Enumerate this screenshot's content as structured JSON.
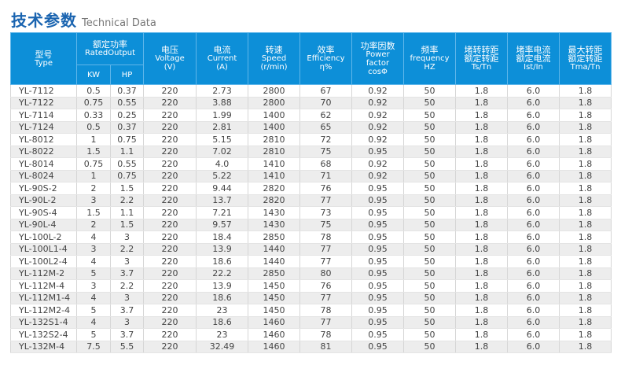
{
  "title": {
    "zh": "技术参数",
    "en": "Technical Data"
  },
  "header": {
    "type": {
      "zh": "型号",
      "en": "Type"
    },
    "rated": {
      "zh": "额定功率",
      "en": "RatedOutput",
      "kw": "KW",
      "hp": "HP"
    },
    "voltage": {
      "zh": "电压",
      "en": "Voltage",
      "unit": "(V)"
    },
    "current": {
      "zh": "电流",
      "en": "Current",
      "unit": "(A)"
    },
    "speed": {
      "zh": "转速",
      "en": "Speed",
      "unit": "(r/min)"
    },
    "efficiency": {
      "zh": "效率",
      "en": "Efficiency",
      "unit": "η%"
    },
    "pf": {
      "zh": "功率因数",
      "en1": "Power",
      "en2": "factor",
      "unit": "cosΦ"
    },
    "freq": {
      "zh": "频率",
      "en": "frequency",
      "unit": "HZ"
    },
    "ts": {
      "zh1": "堵转转距",
      "zh2": "额定转距",
      "unit": "Ts/Tn"
    },
    "ist": {
      "zh1": "堵率电流",
      "zh2": "额定电流",
      "unit": "Ist/In"
    },
    "tma": {
      "zh1": "最大转距",
      "zh2": "额定转距",
      "unit": "Tma/Tn"
    }
  },
  "rows": [
    [
      "YL-7112",
      "0.5",
      "0.37",
      "220",
      "2.73",
      "2800",
      "67",
      "0.92",
      "50",
      "1.8",
      "6.0",
      "1.8"
    ],
    [
      "YL-7122",
      "0.75",
      "0.55",
      "220",
      "3.88",
      "2800",
      "70",
      "0.92",
      "50",
      "1.8",
      "6.0",
      "1.8"
    ],
    [
      "YL-7114",
      "0.33",
      "0.25",
      "220",
      "1.99",
      "1400",
      "62",
      "0.92",
      "50",
      "1.8",
      "6.0",
      "1.8"
    ],
    [
      "YL-7124",
      "0.5",
      "0.37",
      "220",
      "2.81",
      "1400",
      "65",
      "0.92",
      "50",
      "1.8",
      "6.0",
      "1.8"
    ],
    [
      "YL-8012",
      "1",
      "0.75",
      "220",
      "5.15",
      "2810",
      "72",
      "0.92",
      "50",
      "1.8",
      "6.0",
      "1.8"
    ],
    [
      "YL-8022",
      "1.5",
      "1.1",
      "220",
      "7.02",
      "2810",
      "75",
      "0.95",
      "50",
      "1.8",
      "6.0",
      "1.8"
    ],
    [
      "YL-8014",
      "0.75",
      "0.55",
      "220",
      "4.0",
      "1410",
      "68",
      "0.92",
      "50",
      "1.8",
      "6.0",
      "1.8"
    ],
    [
      "YL-8024",
      "1",
      "0.75",
      "220",
      "5.22",
      "1410",
      "71",
      "0.92",
      "50",
      "1.8",
      "6.0",
      "1.8"
    ],
    [
      "YL-90S-2",
      "2",
      "1.5",
      "220",
      "9.44",
      "2820",
      "76",
      "0.95",
      "50",
      "1.8",
      "6.0",
      "1.8"
    ],
    [
      "YL-90L-2",
      "3",
      "2.2",
      "220",
      "13.7",
      "2820",
      "77",
      "0.95",
      "50",
      "1.8",
      "6.0",
      "1.8"
    ],
    [
      "YL-90S-4",
      "1.5",
      "1.1",
      "220",
      "7.21",
      "1430",
      "73",
      "0.95",
      "50",
      "1.8",
      "6.0",
      "1.8"
    ],
    [
      "YL-90L-4",
      "2",
      "1.5",
      "220",
      "9.57",
      "1430",
      "75",
      "0.95",
      "50",
      "1.8",
      "6.0",
      "1.8"
    ],
    [
      "YL-100L-2",
      "4",
      "3",
      "220",
      "18.4",
      "2850",
      "78",
      "0.95",
      "50",
      "1.8",
      "6.0",
      "1.8"
    ],
    [
      "YL-100L1-4",
      "3",
      "2.2",
      "220",
      "13.9",
      "1440",
      "77",
      "0.95",
      "50",
      "1.8",
      "6.0",
      "1.8"
    ],
    [
      "YL-100L2-4",
      "4",
      "3",
      "220",
      "18.6",
      "1440",
      "77",
      "0.95",
      "50",
      "1.8",
      "6.0",
      "1.8"
    ],
    [
      "YL-112M-2",
      "5",
      "3.7",
      "220",
      "22.2",
      "2850",
      "80",
      "0.95",
      "50",
      "1.8",
      "6.0",
      "1.8"
    ],
    [
      "YL-112M-4",
      "3",
      "2.2",
      "220",
      "13.9",
      "1450",
      "76",
      "0.95",
      "50",
      "1.8",
      "6.0",
      "1.8"
    ],
    [
      "YL-112M1-4",
      "4",
      "3",
      "220",
      "18.6",
      "1450",
      "77",
      "0.95",
      "50",
      "1.8",
      "6.0",
      "1.8"
    ],
    [
      "YL-112M2-4",
      "5",
      "3.7",
      "220",
      "23",
      "1450",
      "78",
      "0.95",
      "50",
      "1.8",
      "6.0",
      "1.8"
    ],
    [
      "YL-132S1-4",
      "4",
      "3",
      "220",
      "18.6",
      "1460",
      "77",
      "0.95",
      "50",
      "1.8",
      "6.0",
      "1.8"
    ],
    [
      "YL-132S2-4",
      "5",
      "3.7",
      "220",
      "23",
      "1460",
      "78",
      "0.95",
      "50",
      "1.8",
      "6.0",
      "1.8"
    ],
    [
      "YL-132M-4",
      "7.5",
      "5.5",
      "220",
      "32.49",
      "1460",
      "81",
      "0.95",
      "50",
      "1.8",
      "6.0",
      "1.8"
    ]
  ],
  "colors": {
    "header_bg": "#0d8fd8",
    "title": "#1a64b0",
    "row_alt": "#ededed"
  }
}
